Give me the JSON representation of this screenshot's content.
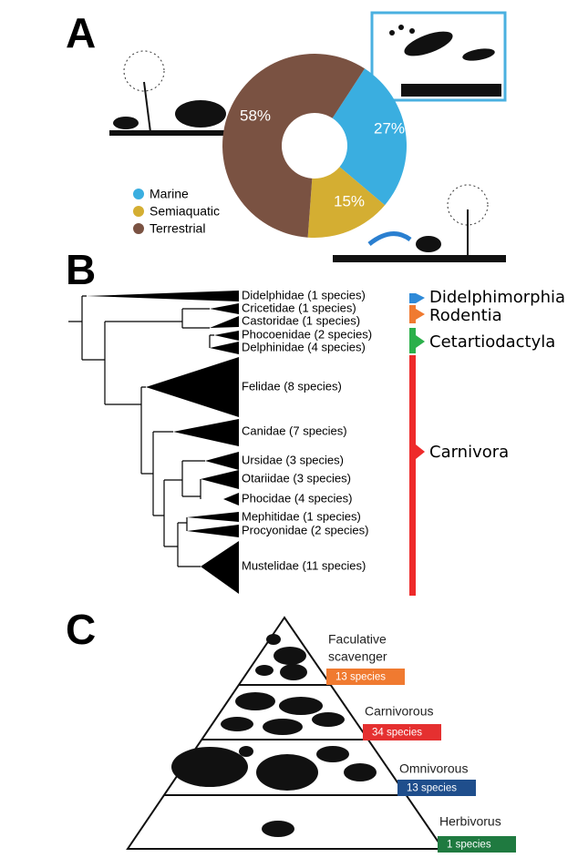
{
  "chart_data": {
    "type": "pie",
    "panel": "A",
    "categories": [
      "Marine",
      "Semiaquatic",
      "Terrestrial"
    ],
    "values": [
      27,
      15,
      58
    ],
    "value_labels": [
      "27%",
      "15%",
      "58%"
    ],
    "colors": [
      "#3aaee0",
      "#d4ae32",
      "#7a5242"
    ]
  },
  "tree": {
    "panel": "B",
    "families": [
      "Didelphidae (1 species)",
      "Cricetidae (1 species)",
      "Castoridae (1 species)",
      "Phocoenidae (2 species)",
      "Delphinidae (4 species)",
      "Felidae (8 species)",
      "Canidae (7 species)",
      "Ursidae (3 species)",
      "Otariidae (3 species)",
      "Phocidae (4 species)",
      "Mephitidae (1 species)",
      "Procyonidae (2 species)",
      "Mustelidae (11 species)"
    ],
    "orders": [
      "Didelphimorphia",
      "Rodentia",
      "Cetartiodactyla",
      "Carnivora"
    ]
  },
  "pyramid": {
    "panel": "C",
    "levels": [
      {
        "label": [
          "Faculative",
          "scavenger"
        ],
        "badge": "13 species"
      },
      {
        "label": [
          "Carnivorous"
        ],
        "badge": "34 species"
      },
      {
        "label": [
          "Omnivorous"
        ],
        "badge": "13 species"
      },
      {
        "label": [
          "Herbivorus"
        ],
        "badge": "1 species"
      }
    ]
  }
}
